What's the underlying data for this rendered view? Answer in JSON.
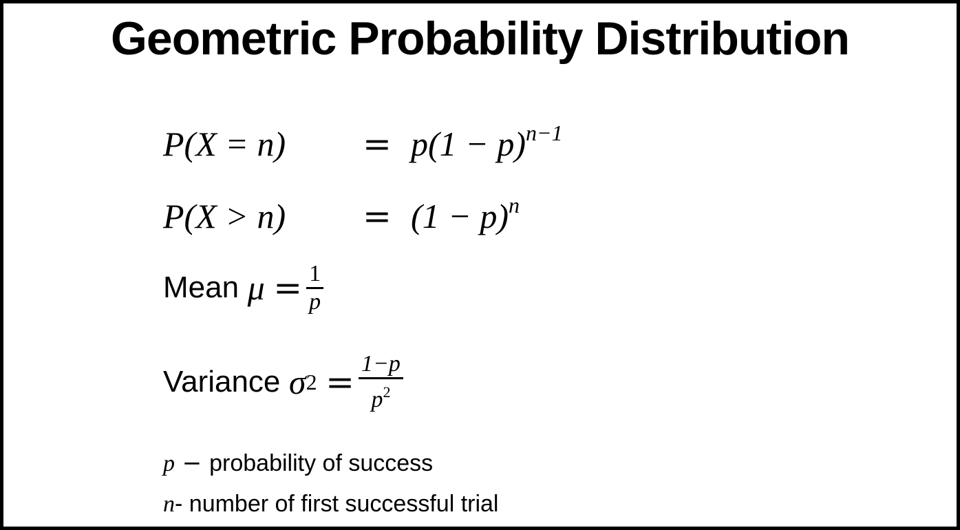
{
  "title": "Geometric Probability Distribution",
  "formulas": {
    "pmf": {
      "lhs": "P(X = n)",
      "eq": "=",
      "rhs": "p(1 − p)",
      "exponent": "n−1"
    },
    "tail": {
      "lhs": "P(X > n)",
      "eq": "=",
      "rhs": "(1 − p)",
      "exponent": "n"
    },
    "mean": {
      "label": "Mean",
      "symbol": "μ",
      "eq": "=",
      "numerator": "1",
      "denominator": "p"
    },
    "variance": {
      "label": "Variance",
      "symbol": "σ",
      "symbol_exp": "2",
      "eq": "=",
      "numerator": "1−p",
      "denominator": "p",
      "denominator_exp": "2"
    }
  },
  "legend": [
    {
      "symbol": "p",
      "sep": " − ",
      "text": "probability of success"
    },
    {
      "symbol": "n",
      "sep": "- ",
      "text": "number of first successful trial"
    }
  ]
}
